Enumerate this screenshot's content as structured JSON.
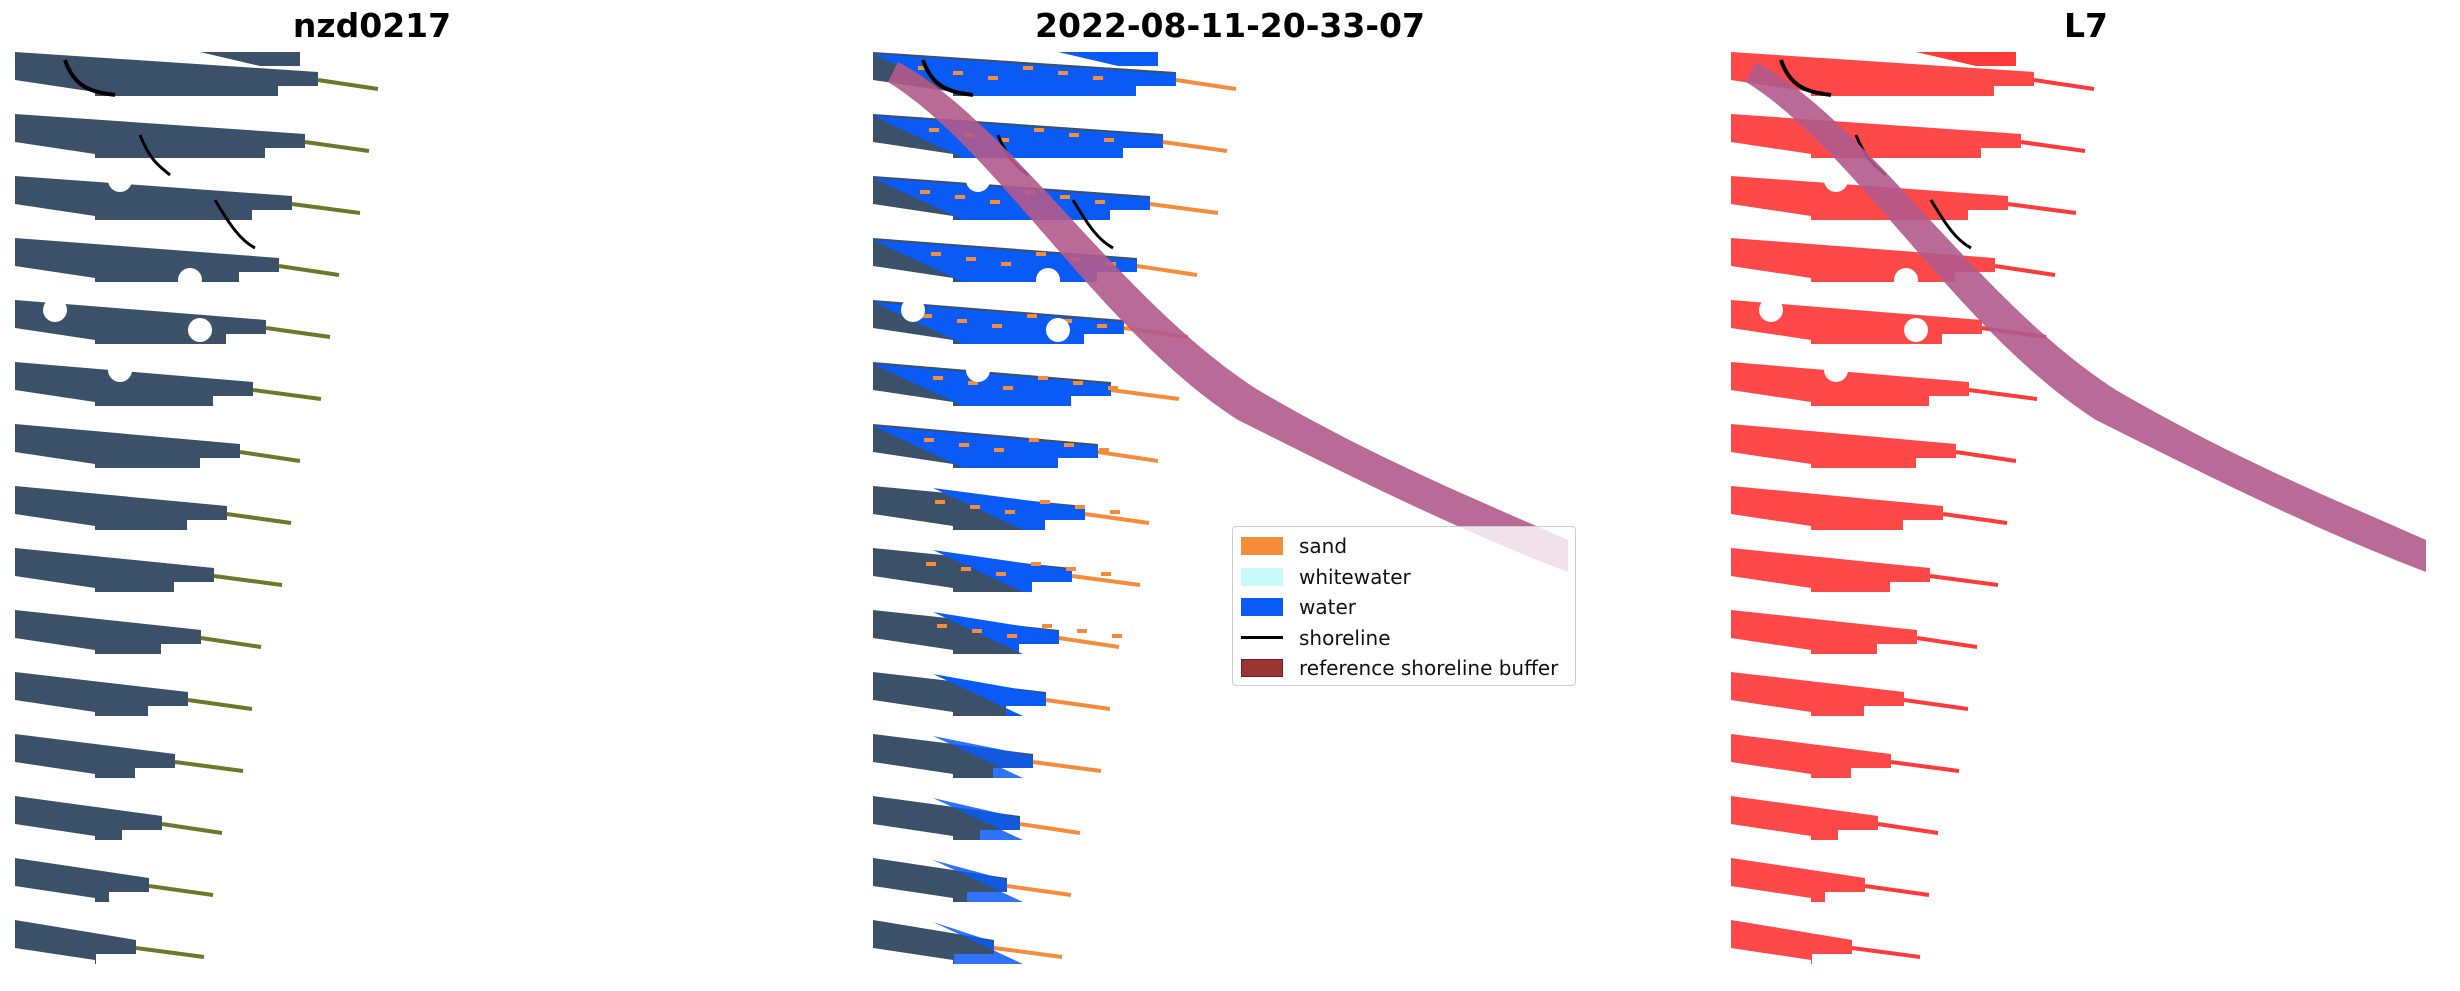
{
  "panels": [
    {
      "title": "nzd0217"
    },
    {
      "title": "2022-08-11-20-33-07"
    },
    {
      "title": "L7"
    }
  ],
  "legend": {
    "items": [
      {
        "label": "sand",
        "color": "#f58c3c",
        "kind": "patch"
      },
      {
        "label": "whitewater",
        "color": "#c8fafa",
        "kind": "patch"
      },
      {
        "label": "water",
        "color": "#0a5af5",
        "kind": "patch"
      },
      {
        "label": "shoreline",
        "color": "#000000",
        "kind": "line"
      },
      {
        "label": "reference shoreline buffer",
        "color": "#9b3535",
        "kind": "patch"
      }
    ]
  },
  "colors": {
    "imagery": "#3b5069",
    "water": "#0a5af5",
    "sand": "#f58c3c",
    "mask_red": "#ff3a3a",
    "buffer": "#b35a8c",
    "buffer_dark": "#9b3535"
  }
}
